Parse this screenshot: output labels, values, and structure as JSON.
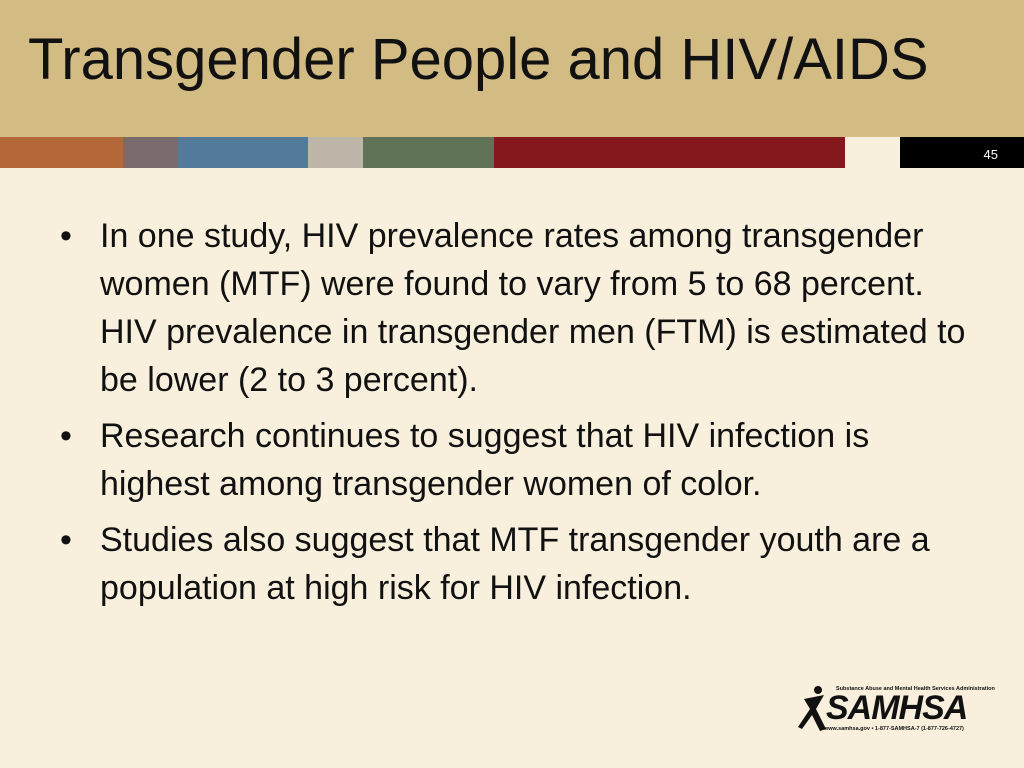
{
  "header": {
    "title": "Transgender People and HIV/AIDS",
    "slide_number": "45"
  },
  "bullets": [
    "In one study, HIV prevalence rates among transgender women (MTF) were found to vary from 5 to 68 percent. HIV prevalence in transgender men (FTM) is estimated to be lower (2 to 3 percent).",
    "Research continues to suggest that HIV infection is highest among transgender women of color.",
    "Studies also suggest that MTF transgender youth are a population at high risk for HIV infection."
  ],
  "logo": {
    "tagline": "Substance Abuse and Mental Health Services Administration",
    "name": "SAMHSA",
    "contact": "www.samhsa.gov • 1-877-SAMHSA-7 (1-877-726-4727)"
  }
}
